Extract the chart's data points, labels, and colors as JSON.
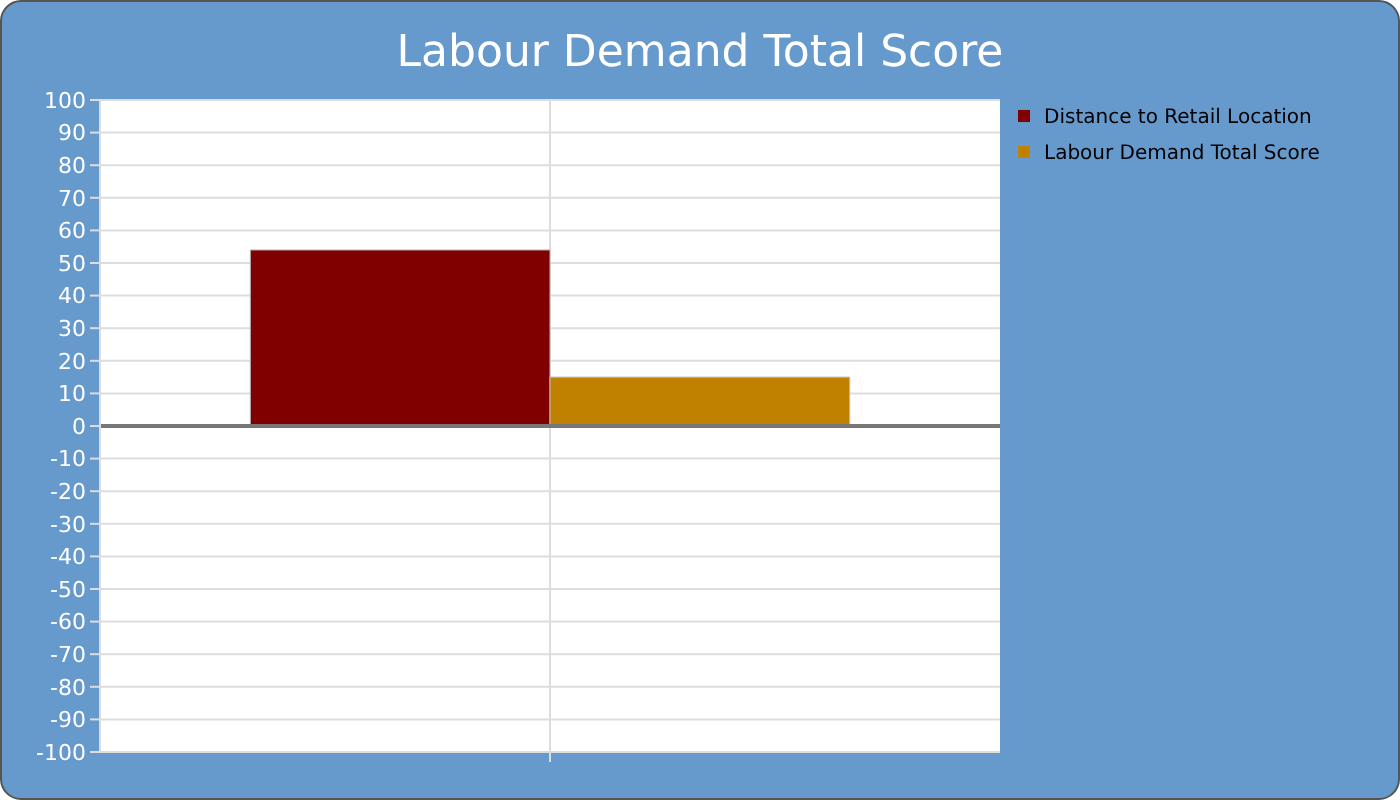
{
  "chart_data": {
    "type": "bar",
    "title": "Labour Demand Total Score",
    "categories": [
      null
    ],
    "series": [
      {
        "name": "Distance to Retail Location",
        "color": "#800000",
        "values": [
          54
        ]
      },
      {
        "name": "Labour Demand Total Score",
        "color": "#c08000",
        "values": [
          15
        ]
      }
    ],
    "ylim": [
      -100,
      100
    ],
    "yticks": [
      -100,
      -90,
      -80,
      -70,
      -60,
      -50,
      -40,
      -30,
      -20,
      -10,
      0,
      10,
      20,
      30,
      40,
      50,
      60,
      70,
      80,
      90,
      100
    ],
    "grid": true,
    "legend": "right"
  }
}
